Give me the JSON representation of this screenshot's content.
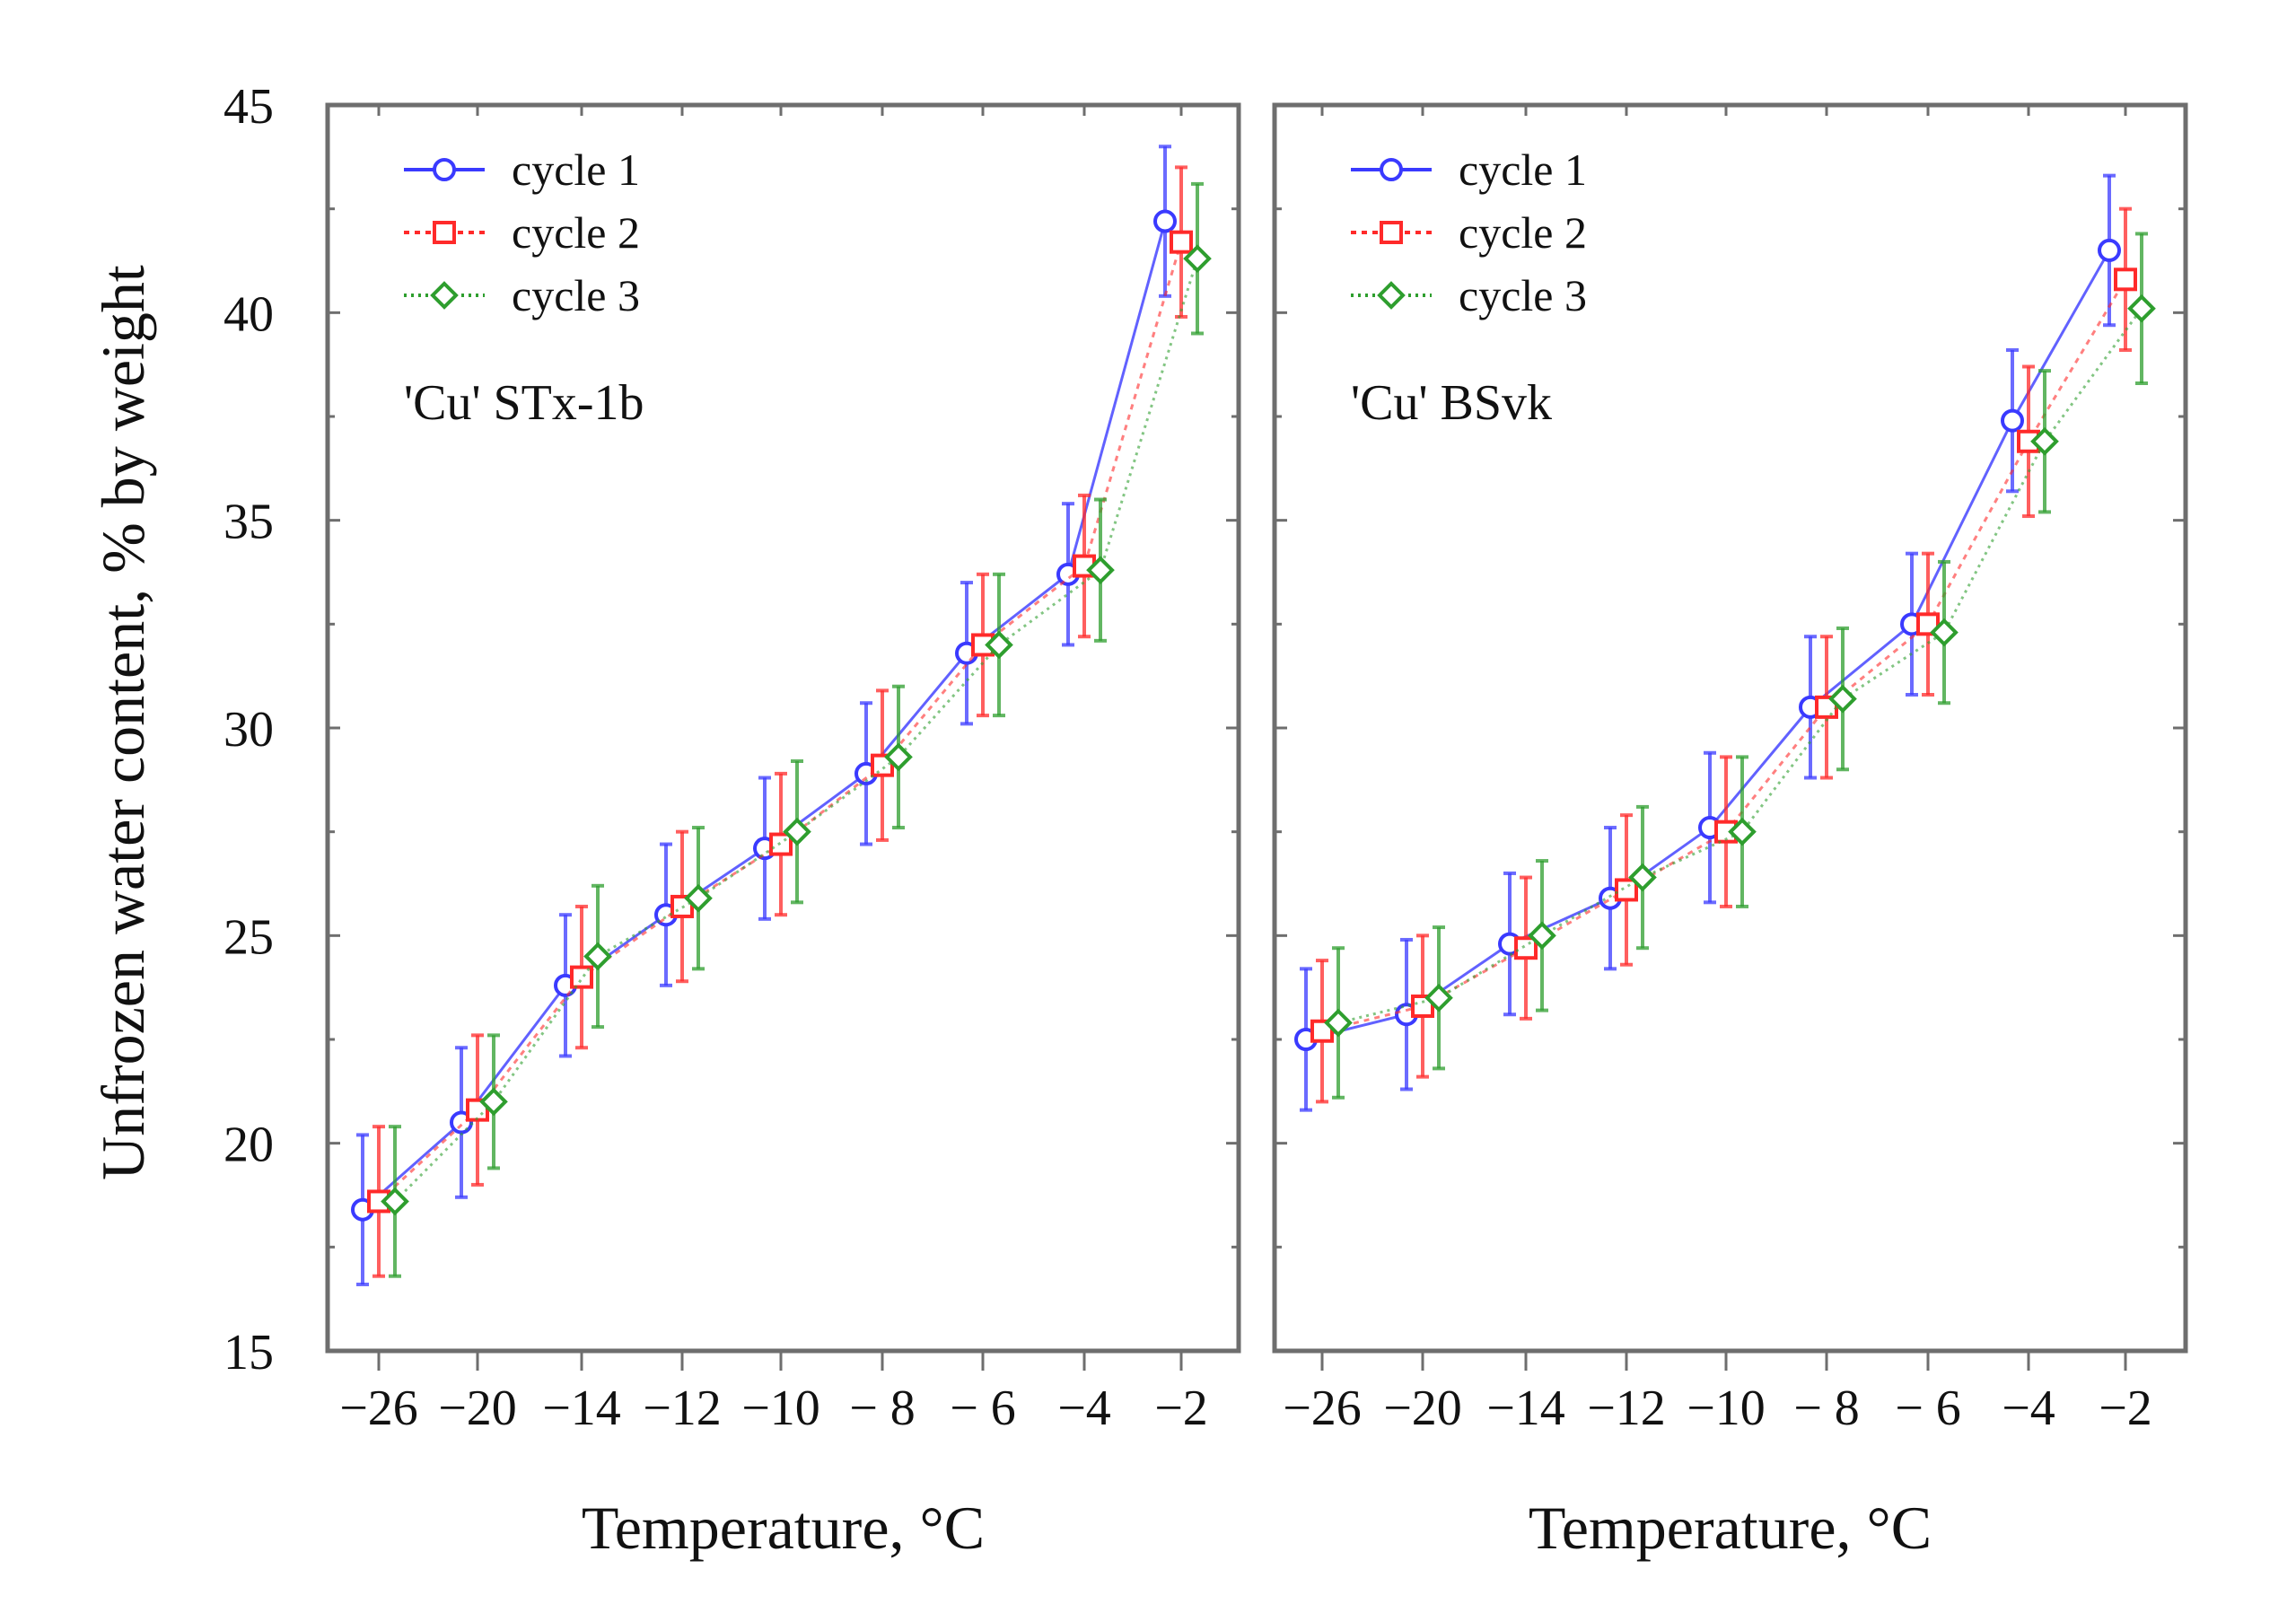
{
  "chart_data": {
    "type": "line",
    "ylabel": "Unfrozen water content, % by weight",
    "ylim": [
      15,
      45
    ],
    "yticks": [
      15,
      20,
      25,
      30,
      35,
      40,
      45
    ],
    "categories": [
      "−26",
      "−20",
      "−14",
      "−12",
      "−10",
      "− 8",
      "− 6",
      "−4",
      "−2"
    ],
    "legend_location": "top-left",
    "series_styles": [
      {
        "name": "cycle  1",
        "color": "#3a3aff",
        "marker": "circle",
        "dash": "solid"
      },
      {
        "name": "cycle  2",
        "color": "#ff2a2a",
        "marker": "square",
        "dash": "dotted"
      },
      {
        "name": "cycle  3",
        "color": "#2e9e2e",
        "marker": "diamond",
        "dash": "dotted"
      }
    ],
    "panels": [
      {
        "label": "'Cu' STx-1b",
        "xlabel": "Temperature,  °C",
        "series": [
          {
            "name": "cycle  1",
            "values": [
              18.4,
              20.5,
              23.8,
              25.5,
              27.1,
              28.9,
              31.8,
              33.7,
              42.2
            ],
            "error": [
              1.8,
              1.8,
              1.7,
              1.7,
              1.7,
              1.7,
              1.7,
              1.7,
              1.8
            ]
          },
          {
            "name": "cycle  2",
            "values": [
              18.6,
              20.8,
              24.0,
              25.7,
              27.2,
              29.1,
              32.0,
              33.9,
              41.7
            ],
            "error": [
              1.8,
              1.8,
              1.7,
              1.8,
              1.7,
              1.8,
              1.7,
              1.7,
              1.8
            ]
          },
          {
            "name": "cycle  3",
            "values": [
              18.6,
              21.0,
              24.5,
              25.9,
              27.5,
              29.3,
              32.0,
              33.8,
              41.3
            ],
            "error": [
              1.8,
              1.6,
              1.7,
              1.7,
              1.7,
              1.7,
              1.7,
              1.7,
              1.8
            ]
          }
        ]
      },
      {
        "label": "'Cu' BSvk",
        "xlabel": "Temperature,  °C",
        "series": [
          {
            "name": "cycle  1",
            "values": [
              22.5,
              23.1,
              24.8,
              25.9,
              27.6,
              30.5,
              32.5,
              37.4,
              41.5
            ],
            "error": [
              1.7,
              1.8,
              1.7,
              1.7,
              1.8,
              1.7,
              1.7,
              1.7,
              1.8
            ]
          },
          {
            "name": "cycle  2",
            "values": [
              22.7,
              23.3,
              24.7,
              26.1,
              27.5,
              30.5,
              32.5,
              36.9,
              40.8
            ],
            "error": [
              1.7,
              1.7,
              1.7,
              1.8,
              1.8,
              1.7,
              1.7,
              1.8,
              1.7
            ]
          },
          {
            "name": "cycle  3",
            "values": [
              22.9,
              23.5,
              25.0,
              26.4,
              27.5,
              30.7,
              32.3,
              36.9,
              40.1
            ],
            "error": [
              1.8,
              1.7,
              1.8,
              1.7,
              1.8,
              1.7,
              1.7,
              1.7,
              1.8
            ]
          }
        ]
      }
    ]
  }
}
